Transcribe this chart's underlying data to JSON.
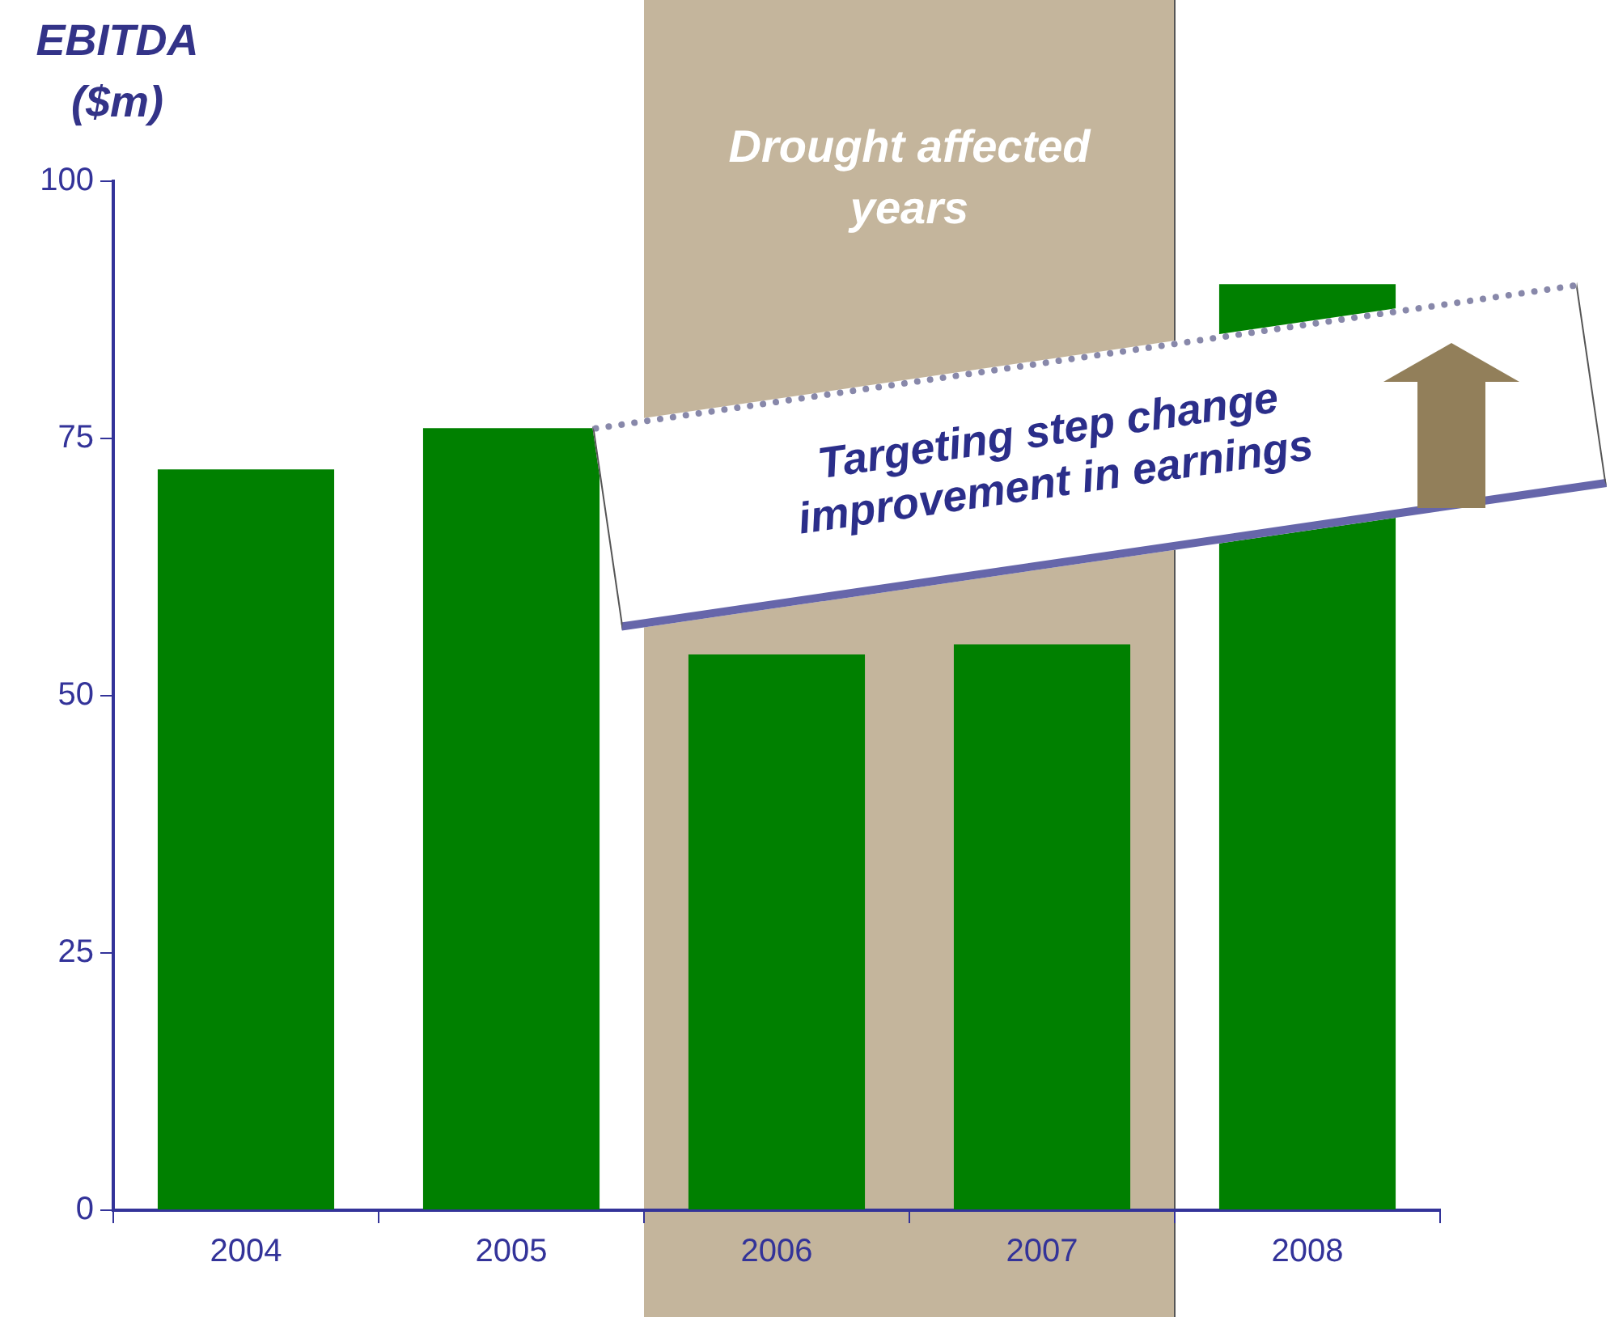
{
  "chart_data": {
    "type": "bar",
    "ylabel": "EBITDA ($m)",
    "categories": [
      "2004",
      "2005",
      "2006",
      "2007",
      "2008"
    ],
    "values": [
      72,
      76,
      54,
      55,
      90
    ],
    "color": "#008000",
    "ylim": [
      0,
      100
    ],
    "yticks": [
      0,
      25,
      50,
      75,
      100
    ],
    "grid": false,
    "legend": false,
    "bands": [
      {
        "axis": "x",
        "from": "2006",
        "to": "2007",
        "label": "Drought affected years",
        "color": "#c4b59c"
      }
    ],
    "annotations": [
      "Targeting step change improvement in earnings"
    ]
  }
}
